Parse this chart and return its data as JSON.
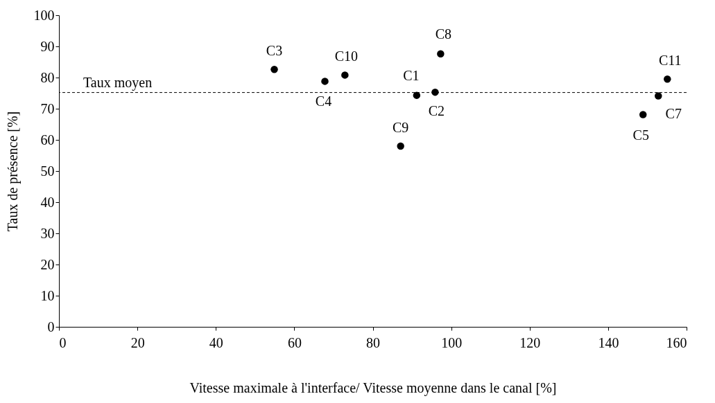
{
  "chart_data": {
    "type": "scatter",
    "xlabel": "Vitesse maximale à l'interface/ Vitesse moyenne dans le canal [%]",
    "ylabel": "Taux de présence [%]",
    "x": [
      91.2,
      95.9,
      54.9,
      67.8,
      148.9,
      152.8,
      97.3,
      87.1,
      72.9,
      155.1
    ],
    "series": [
      {
        "color": "#000000",
        "values": [
          74.3,
          75.3,
          82.6,
          78.8,
          68.1,
          74.1,
          87.6,
          58.0,
          80.8,
          79.5
        ]
      }
    ],
    "annotations": [
      {
        "text": "C1",
        "x": 91.2,
        "y": 74.3
      },
      {
        "text": "C2",
        "x": 95.9,
        "y": 75.3
      },
      {
        "text": "C3",
        "x": 54.9,
        "y": 82.6
      },
      {
        "text": "C4",
        "x": 67.8,
        "y": 78.8
      },
      {
        "text": "C5",
        "x": 148.9,
        "y": 68.1
      },
      {
        "text": "C7",
        "x": 152.8,
        "y": 74.1
      },
      {
        "text": "C8",
        "x": 97.3,
        "y": 87.6
      },
      {
        "text": "C9",
        "x": 87.1,
        "y": 58.0
      },
      {
        "text": "C10",
        "x": 72.9,
        "y": 80.8
      },
      {
        "text": "C11",
        "x": 155.1,
        "y": 79.5
      }
    ],
    "ref_lines": [
      {
        "axis": "y",
        "value": 75.2,
        "label": "Taux moyen",
        "line_style": "dashed",
        "color": "#000000"
      }
    ],
    "xlim": [
      0,
      160
    ],
    "xticks": [
      0,
      20,
      40,
      60,
      80,
      100,
      120,
      140,
      160
    ],
    "ylim": [
      0,
      100
    ],
    "yticks": [
      0,
      10,
      20,
      30,
      40,
      50,
      60,
      70,
      80,
      90,
      100
    ],
    "grid": false,
    "marker": "circle"
  }
}
